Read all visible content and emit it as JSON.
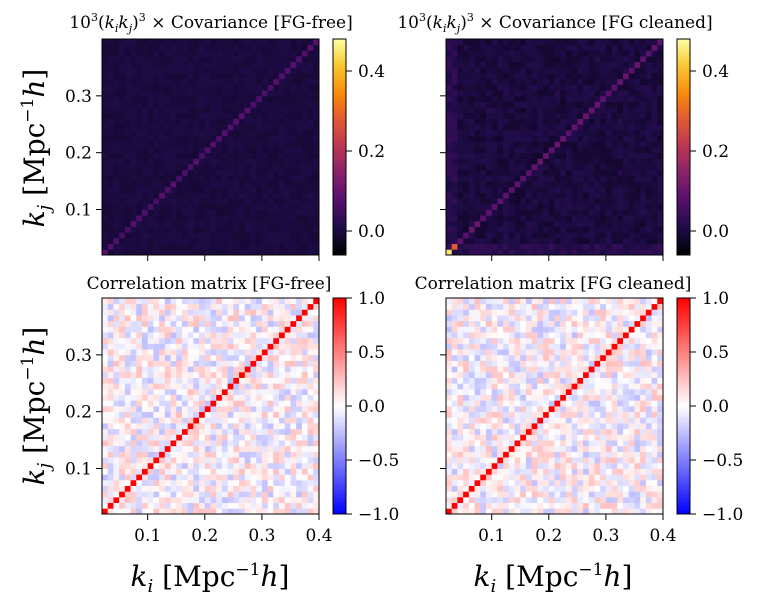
{
  "chart_data": [
    {
      "type": "heatmap",
      "panel": "top-left",
      "title": "10^3(k_i k_j)^3 × Covariance [FG-free]",
      "title_parts": {
        "base": "10",
        "exp": "3",
        "mid": "(k",
        "sub1": "i",
        "k2": "k",
        "sub2": "j",
        "close": ")",
        "exp2": "3",
        "tail": " × Covariance [FG-free]"
      },
      "xlim": [
        0.02,
        0.4
      ],
      "ylim": [
        0.02,
        0.4
      ],
      "xticks": [],
      "xticklabels": [],
      "yticks": [
        0.1,
        0.2,
        0.3
      ],
      "yticklabels": [
        "0.1",
        "0.2",
        "0.3"
      ],
      "xlabel": "",
      "ylabel": "k_j [Mpc^{-1}h]",
      "n_bins": 38,
      "diagonal_value": 0.07,
      "offdiag_value": 0.0,
      "colormap": "inferno",
      "colorbar": {
        "vmin": -0.06,
        "vmax": 0.48,
        "ticks": [
          0.0,
          0.2,
          0.4
        ],
        "ticklabels": [
          "0.0",
          "0.2",
          "0.4"
        ]
      }
    },
    {
      "type": "heatmap",
      "panel": "top-right",
      "title": "10^3(k_i k_j)^3 × Covariance [FG cleaned]",
      "title_parts": {
        "base": "10",
        "exp": "3",
        "mid": "(k",
        "sub1": "i",
        "k2": "k",
        "sub2": "j",
        "close": ")",
        "exp2": "3",
        "tail": " × Covariance [FG cleaned]"
      },
      "xlim": [
        0.02,
        0.4
      ],
      "ylim": [
        0.02,
        0.4
      ],
      "xticks": [],
      "xticklabels": [],
      "yticks": [
        0.1,
        0.2,
        0.3
      ],
      "yticklabels": [
        "",
        "",
        ""
      ],
      "xlabel": "",
      "ylabel": "",
      "n_bins": 38,
      "diagonal_value": 0.09,
      "first_bin_value": 0.45,
      "second_bin_value": 0.28,
      "offdiag_value": 0.0,
      "colormap": "inferno",
      "colorbar": {
        "vmin": -0.06,
        "vmax": 0.48,
        "ticks": [
          0.0,
          0.2,
          0.4
        ],
        "ticklabels": [
          "0.0",
          "0.2",
          "0.4"
        ]
      }
    },
    {
      "type": "heatmap",
      "panel": "bottom-left",
      "title": "Correlation matrix [FG-free]",
      "xlim": [
        0.02,
        0.4
      ],
      "ylim": [
        0.02,
        0.4
      ],
      "xticks": [
        0.1,
        0.2,
        0.3,
        0.4
      ],
      "xticklabels": [
        "0.1",
        "0.2",
        "0.3",
        "0.4"
      ],
      "yticks": [
        0.1,
        0.2,
        0.3
      ],
      "yticklabels": [
        "0.1",
        "0.2",
        "0.3"
      ],
      "xlabel": "k_i [Mpc^{-1}h]",
      "ylabel": "k_j [Mpc^{-1}h]",
      "n_bins": 38,
      "diagonal_value": 1.0,
      "offdiag_value": 0.0,
      "colormap": "bwr",
      "colorbar": {
        "vmin": -1.0,
        "vmax": 1.0,
        "ticks": [
          1.0,
          0.5,
          0.0,
          -0.5,
          -1.0
        ],
        "ticklabels": [
          "1.0",
          "0.5",
          "0.0",
          "−0.5",
          "−1.0"
        ]
      }
    },
    {
      "type": "heatmap",
      "panel": "bottom-right",
      "title": "Correlation matrix [FG cleaned]",
      "xlim": [
        0.02,
        0.4
      ],
      "ylim": [
        0.02,
        0.4
      ],
      "xticks": [
        0.1,
        0.2,
        0.3,
        0.4
      ],
      "xticklabels": [
        "0.1",
        "0.2",
        "0.3",
        "0.4"
      ],
      "yticks": [
        0.1,
        0.2,
        0.3
      ],
      "yticklabels": [
        "",
        "",
        ""
      ],
      "xlabel": "k_i [Mpc^{-1}h]",
      "ylabel": "",
      "n_bins": 38,
      "diagonal_value": 1.0,
      "offdiag_value": 0.0,
      "colormap": "bwr",
      "colorbar": {
        "vmin": -1.0,
        "vmax": 1.0,
        "ticks": [
          1.0,
          0.5,
          0.0,
          -0.5,
          -1.0
        ],
        "ticklabels": [
          "1.0",
          "0.5",
          "0.0",
          "−0.5",
          "−1.0"
        ]
      }
    }
  ],
  "axis_label_parts": {
    "k": "k",
    "sub_i": "i",
    "sub_j": "j",
    "units_open": " [Mpc",
    "units_exp": "−1",
    "units_h": "h",
    "units_close": "]"
  }
}
